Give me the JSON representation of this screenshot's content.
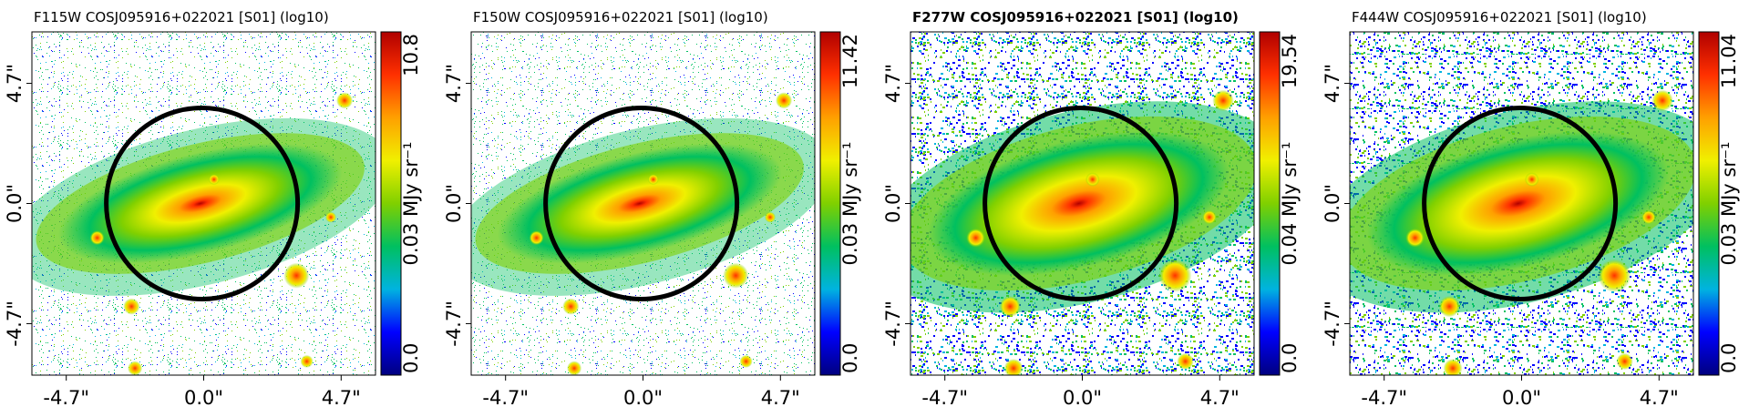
{
  "figure": {
    "colormap": [
      "#00007f",
      "#0000ff",
      "#00b3e0",
      "#00c060",
      "#80d000",
      "#f0f000",
      "#ffa000",
      "#ff3000",
      "#b00000"
    ],
    "circle_color": "#000000",
    "x_ticks": [
      "-4.7\"",
      "0.0\"",
      "4.7\""
    ],
    "y_ticks": [
      "4.7\"",
      "0.0\"",
      "-4.7\""
    ],
    "colorbar_unit": "MJy sr⁻¹",
    "panels": [
      {
        "title": "F115W COSJ095916+022021 [S01] (log10)",
        "title_bold": false,
        "cbar_min": "0.0",
        "cbar_mid": "0.03",
        "cbar_max": "10.8",
        "noise_level": "low"
      },
      {
        "title": "F150W COSJ095916+022021 [S01] (log10)",
        "title_bold": false,
        "cbar_min": "0.0",
        "cbar_mid": "0.03",
        "cbar_max": "11.42",
        "noise_level": "low"
      },
      {
        "title": "F277W COSJ095916+022021 [S01] (log10)",
        "title_bold": true,
        "cbar_min": "0.0",
        "cbar_mid": "0.04",
        "cbar_max": "19.54",
        "noise_level": "high"
      },
      {
        "title": "F444W COSJ095916+022021 [S01] (log10)",
        "title_bold": false,
        "cbar_min": "0.0",
        "cbar_mid": "0.03",
        "cbar_max": "11.04",
        "noise_level": "high"
      }
    ]
  }
}
